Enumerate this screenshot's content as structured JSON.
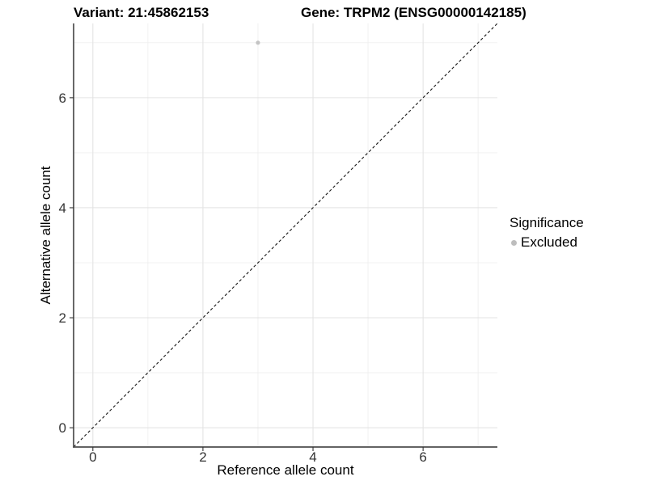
{
  "header": {
    "variant_title": "Variant: 21:45862153",
    "gene_title": "Gene: TRPM2 (ENSG00000142185)"
  },
  "chart_data": {
    "type": "scatter",
    "title_left": "Variant: 21:45862153",
    "title_right": "Gene: TRPM2 (ENSG00000142185)",
    "xlabel": "Reference allele count",
    "ylabel": "Alternative allele count",
    "xlim": [
      -0.35,
      7.35
    ],
    "ylim": [
      -0.35,
      7.35
    ],
    "xticks": [
      0,
      2,
      4,
      6
    ],
    "yticks": [
      0,
      2,
      4,
      6
    ],
    "x_minor_breaks": [
      1,
      3,
      5,
      7
    ],
    "y_minor_breaks": [
      1,
      3,
      5,
      7
    ],
    "grid": true,
    "points": [
      {
        "x": 3,
        "y": 7,
        "series": "Excluded"
      }
    ],
    "identity_line": {
      "slope": 1,
      "intercept": 0,
      "style": "dashed",
      "color": "#141414"
    },
    "legend": {
      "title": "Significance",
      "position": "right",
      "items": [
        {
          "label": "Excluded",
          "color": "#bdbdbd"
        }
      ]
    },
    "colors": {
      "point": "#c4c4c4",
      "grid_major": "#e4e4e4",
      "grid_minor": "#efefef",
      "axis_line": "#4d4d4d",
      "tick_mark": "#333333",
      "tick_label": "#333333",
      "background": "#ffffff"
    }
  }
}
